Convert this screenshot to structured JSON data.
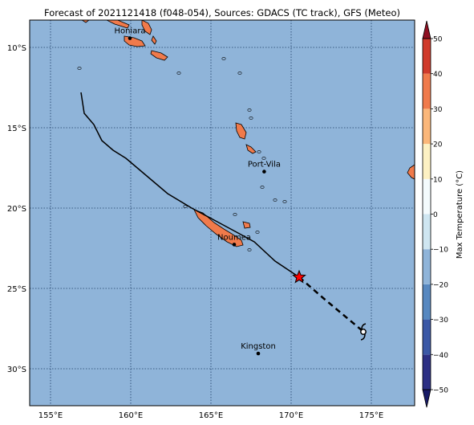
{
  "title": "Forecast of 2021121418 (f048-054), Sources: GDACS (TC track), GFS (Meteo)",
  "map": {
    "lon_range": [
      153.7,
      177.7
    ],
    "lat_range": [
      -32.3,
      -8.3
    ],
    "lon_ticks": [
      {
        "value": 155,
        "label": "155°E"
      },
      {
        "value": 160,
        "label": "160°E"
      },
      {
        "value": 165,
        "label": "165°E"
      },
      {
        "value": 170,
        "label": "170°E"
      },
      {
        "value": 175,
        "label": "175°E"
      }
    ],
    "lat_ticks": [
      {
        "value": -10,
        "label": "10°S"
      },
      {
        "value": -15,
        "label": "15°S"
      },
      {
        "value": -20,
        "label": "20°S"
      },
      {
        "value": -25,
        "label": "25°S"
      },
      {
        "value": -30,
        "label": "30°S"
      }
    ],
    "grid": true,
    "ocean_color": "#8fb4d9",
    "land_color": "#f07a4b"
  },
  "cities": [
    {
      "name": "Honiara",
      "lon": 159.95,
      "lat": -9.43
    },
    {
      "name": "Port-Vila",
      "lon": 168.32,
      "lat": -17.73
    },
    {
      "name": "Noumea",
      "lon": 166.45,
      "lat": -22.27
    },
    {
      "name": "Kingston",
      "lon": 167.95,
      "lat": -29.05
    }
  ],
  "track": {
    "past": [
      [
        156.9,
        -12.8
      ],
      [
        157.1,
        -14.1
      ],
      [
        157.7,
        -14.8
      ],
      [
        158.2,
        -15.8
      ],
      [
        158.9,
        -16.4
      ],
      [
        159.7,
        -16.9
      ],
      [
        161.0,
        -18.0
      ],
      [
        162.3,
        -19.1
      ],
      [
        163.8,
        -20.0
      ],
      [
        165.3,
        -20.8
      ],
      [
        166.6,
        -21.5
      ],
      [
        167.7,
        -22.1
      ],
      [
        169.0,
        -23.3
      ],
      [
        170.5,
        -24.3
      ]
    ],
    "forecast": [
      [
        170.5,
        -24.3
      ],
      [
        172.0,
        -25.6
      ],
      [
        174.4,
        -27.6
      ]
    ],
    "current": {
      "lon": 170.5,
      "lat": -24.3
    },
    "storm_symbol": {
      "lon": 174.5,
      "lat": -27.7
    },
    "track_color": "#000000",
    "marker_color": "#ff0000"
  },
  "colorbar": {
    "label": "Max Temperature (°C)",
    "ticks": [
      {
        "value": 50,
        "label": "50"
      },
      {
        "value": 40,
        "label": "40"
      },
      {
        "value": 30,
        "label": "30"
      },
      {
        "value": 20,
        "label": "20"
      },
      {
        "value": 10,
        "label": "10"
      },
      {
        "value": 0,
        "label": "0"
      },
      {
        "value": -10,
        "label": "−10"
      },
      {
        "value": -20,
        "label": "−20"
      },
      {
        "value": -30,
        "label": "−30"
      },
      {
        "value": -40,
        "label": "−40"
      },
      {
        "value": -50,
        "label": "−50"
      }
    ],
    "levels": [
      {
        "from": -50,
        "to": -40,
        "color": "#2c2f84"
      },
      {
        "from": -40,
        "to": -30,
        "color": "#3b58a6"
      },
      {
        "from": -30,
        "to": -20,
        "color": "#5788c0"
      },
      {
        "from": -20,
        "to": -10,
        "color": "#8fb4d9"
      },
      {
        "from": -10,
        "to": 0,
        "color": "#cfe6f1"
      },
      {
        "from": 0,
        "to": 10,
        "color": "#f4fbfd"
      },
      {
        "from": 10,
        "to": 20,
        "color": "#fdf1c3"
      },
      {
        "from": 20,
        "to": 30,
        "color": "#fbb77a"
      },
      {
        "from": 30,
        "to": 40,
        "color": "#f07a4b"
      },
      {
        "from": 40,
        "to": 50,
        "color": "#d03a2b"
      }
    ],
    "extend_low_color": "#171a66",
    "extend_high_color": "#8f1022"
  },
  "islands": [
    {
      "name": "santa-isabel",
      "points": [
        [
          158.5,
          -8.0
        ],
        [
          159.3,
          -8.35
        ],
        [
          159.9,
          -8.6
        ],
        [
          159.8,
          -8.8
        ],
        [
          159.0,
          -8.55
        ],
        [
          158.4,
          -8.25
        ]
      ]
    },
    {
      "name": "choiseul-tip",
      "points": [
        [
          156.9,
          -8.0
        ],
        [
          157.4,
          -8.3
        ],
        [
          157.2,
          -8.45
        ],
        [
          156.8,
          -8.2
        ]
      ]
    },
    {
      "name": "guadalcanal",
      "points": [
        [
          159.6,
          -9.3
        ],
        [
          160.2,
          -9.4
        ],
        [
          160.7,
          -9.6
        ],
        [
          160.9,
          -9.9
        ],
        [
          160.4,
          -9.95
        ],
        [
          159.9,
          -9.85
        ],
        [
          159.6,
          -9.6
        ]
      ]
    },
    {
      "name": "malaita",
      "points": [
        [
          160.7,
          -8.3
        ],
        [
          161.1,
          -8.5
        ],
        [
          161.3,
          -8.9
        ],
        [
          161.2,
          -9.2
        ],
        [
          160.9,
          -9.0
        ],
        [
          160.7,
          -8.6
        ]
      ]
    },
    {
      "name": "malaita-south",
      "points": [
        [
          161.4,
          -9.3
        ],
        [
          161.6,
          -9.6
        ],
        [
          161.5,
          -9.8
        ],
        [
          161.3,
          -9.55
        ]
      ]
    },
    {
      "name": "makira",
      "points": [
        [
          161.3,
          -10.2
        ],
        [
          161.9,
          -10.35
        ],
        [
          162.3,
          -10.6
        ],
        [
          162.1,
          -10.8
        ],
        [
          161.6,
          -10.65
        ],
        [
          161.25,
          -10.4
        ]
      ]
    },
    {
      "name": "new-caledonia",
      "points": [
        [
          163.95,
          -20.1
        ],
        [
          164.5,
          -20.3
        ],
        [
          165.2,
          -20.9
        ],
        [
          165.8,
          -21.3
        ],
        [
          166.3,
          -21.6
        ],
        [
          166.9,
          -22.0
        ],
        [
          167.0,
          -22.3
        ],
        [
          166.6,
          -22.4
        ],
        [
          166.0,
          -22.1
        ],
        [
          165.3,
          -21.6
        ],
        [
          164.7,
          -21.1
        ],
        [
          164.2,
          -20.6
        ]
      ]
    },
    {
      "name": "lifou",
      "points": [
        [
          167.0,
          -20.85
        ],
        [
          167.4,
          -20.95
        ],
        [
          167.45,
          -21.2
        ],
        [
          167.1,
          -21.25
        ]
      ]
    },
    {
      "name": "espiritu-santo",
      "points": [
        [
          166.55,
          -14.7
        ],
        [
          166.9,
          -14.8
        ],
        [
          167.2,
          -15.3
        ],
        [
          167.1,
          -15.7
        ],
        [
          166.8,
          -15.6
        ],
        [
          166.6,
          -15.2
        ]
      ]
    },
    {
      "name": "malekula",
      "points": [
        [
          167.2,
          -16.05
        ],
        [
          167.5,
          -16.2
        ],
        [
          167.8,
          -16.5
        ],
        [
          167.6,
          -16.6
        ],
        [
          167.3,
          -16.4
        ]
      ]
    },
    {
      "name": "fiji-viti-levu",
      "points": [
        [
          177.7,
          -17.3
        ],
        [
          177.4,
          -17.5
        ],
        [
          177.25,
          -17.8
        ],
        [
          177.5,
          -18.1
        ],
        [
          177.7,
          -18.2
        ]
      ]
    }
  ]
}
